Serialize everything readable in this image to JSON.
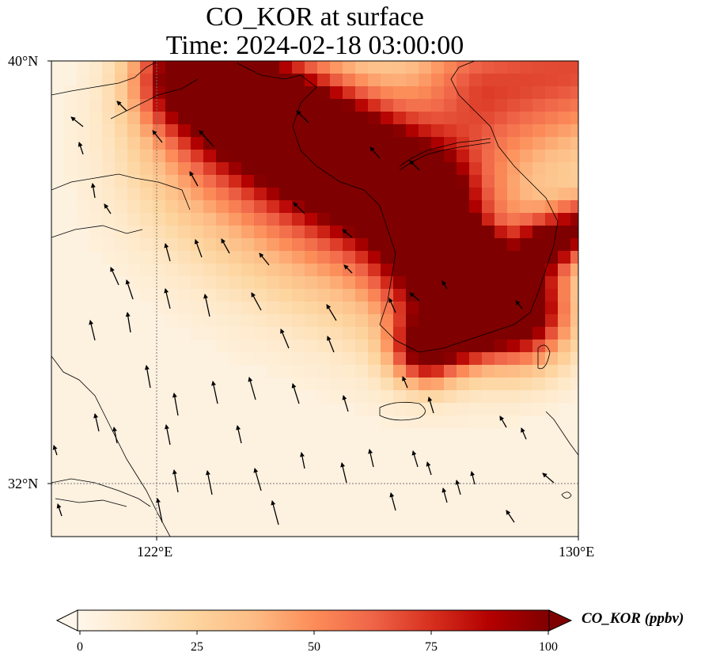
{
  "title": "CO_KOR at surface",
  "subtitle": "Time: 2024-02-18 03:00:00",
  "map": {
    "projection": "plate carree",
    "lon_range": [
      120,
      130
    ],
    "lat_range": [
      31,
      40
    ],
    "gridlines": {
      "lon": [
        122
      ],
      "lat": [
        32
      ],
      "style": "dotted"
    },
    "lon_tick_labels": [
      "122°E",
      "130°E"
    ],
    "lat_tick_labels": [
      "40°N",
      "32°N"
    ],
    "field": "CO_KOR",
    "field_description": "surface CO concentration with wind vectors",
    "plume_core": "high values (>100 ppbv) from Liaodong/Bohai coast southeast across the Korean Peninsula and the south coast of Korea"
  },
  "colorbar": {
    "label": "CO_KOR (ppbv)",
    "ticks": [
      "0",
      "25",
      "50",
      "75",
      "100"
    ],
    "range": [
      0,
      100
    ],
    "extend": "both",
    "colormap": "OrRd",
    "colors": [
      "#fff7ec",
      "#fee8c8",
      "#fdd49e",
      "#fdbb84",
      "#fc8d59",
      "#ef6548",
      "#d7301f",
      "#b30000",
      "#7f0000"
    ]
  }
}
